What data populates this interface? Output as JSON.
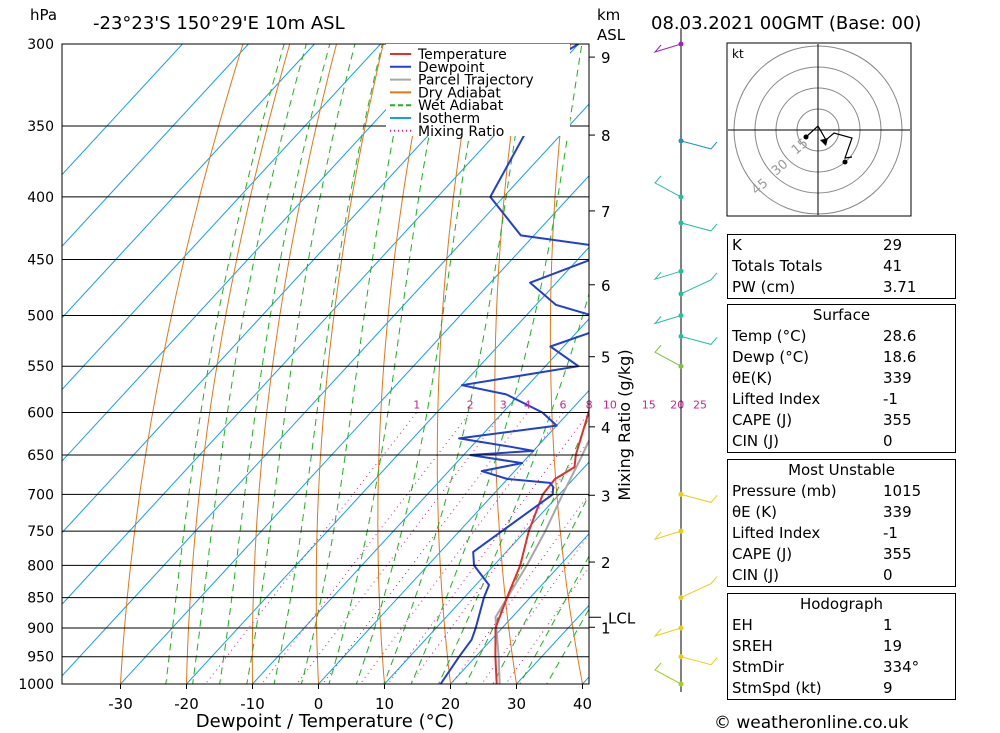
{
  "header": {
    "hpa_label": "hPa",
    "location": "-23°23'S 150°29'E 10m ASL",
    "km_label": "km",
    "asl_label": "ASL",
    "datetime": "08.03.2021 00GMT (Base: 00)"
  },
  "footer": {
    "credit": "© weatheronline.co.uk"
  },
  "chart_data": {
    "type": "line",
    "subtype": "skew-T log-p",
    "xlabel": "Dewpoint / Temperature (°C)",
    "ylabel_left": "hPa",
    "ylabel_right": "Mixing Ratio (g/kg)",
    "pressure_ticks": [
      300,
      350,
      400,
      450,
      500,
      550,
      600,
      650,
      700,
      750,
      800,
      850,
      900,
      950,
      1000
    ],
    "temperature_ticks": [
      -30,
      -20,
      -10,
      0,
      10,
      20,
      30,
      40
    ],
    "km_ticks": [
      1,
      2,
      3,
      4,
      5,
      6,
      7,
      8,
      9
    ],
    "lcl_label": "LCL",
    "lcl_pressure": 882,
    "mixing_ratio_labels": [
      "1",
      "2",
      "3",
      "4",
      "6",
      "8",
      "10",
      "15",
      "20",
      "25"
    ],
    "mixing_ratio_values": [
      1,
      2,
      3,
      4,
      6,
      8,
      10,
      15,
      20,
      25
    ],
    "legend": [
      {
        "name": "Temperature",
        "color": "#e03030",
        "style": "solid"
      },
      {
        "name": "Dewpoint",
        "color": "#2040d0",
        "style": "solid"
      },
      {
        "name": "Parcel Trajectory",
        "color": "#a8a8a8",
        "style": "solid"
      },
      {
        "name": "Dry Adiabat",
        "color": "#e07818",
        "style": "solid"
      },
      {
        "name": "Wet Adiabat",
        "color": "#20b020",
        "style": "dashed"
      },
      {
        "name": "Isotherm",
        "color": "#18a0e0",
        "style": "solid"
      },
      {
        "name": "Mixing Ratio",
        "color": "#d02090",
        "style": "dotted"
      }
    ],
    "temperature": [
      {
        "p": 1015,
        "t": 28.6
      },
      {
        "p": 1000,
        "t": 27.0
      },
      {
        "p": 950,
        "t": 23.0
      },
      {
        "p": 900,
        "t": 19.0
      },
      {
        "p": 850,
        "t": 16.5
      },
      {
        "p": 800,
        "t": 14.0
      },
      {
        "p": 750,
        "t": 10.5
      },
      {
        "p": 700,
        "t": 7.5
      },
      {
        "p": 680,
        "t": 7.2
      },
      {
        "p": 665,
        "t": 8.5
      },
      {
        "p": 650,
        "t": 7.0
      },
      {
        "p": 600,
        "t": 3.0
      },
      {
        "p": 550,
        "t": -1.5
      },
      {
        "p": 530,
        "t": -3.0
      },
      {
        "p": 520,
        "t": -2.5
      },
      {
        "p": 500,
        "t": -5.5
      },
      {
        "p": 450,
        "t": -12.0
      },
      {
        "p": 400,
        "t": -19.5
      },
      {
        "p": 350,
        "t": -28.0
      },
      {
        "p": 300,
        "t": -38.5
      }
    ],
    "dewpoint": [
      {
        "p": 1015,
        "t": 18.6
      },
      {
        "p": 1000,
        "t": 18.5
      },
      {
        "p": 950,
        "t": 17.5
      },
      {
        "p": 920,
        "t": 17.0
      },
      {
        "p": 900,
        "t": 16.0
      },
      {
        "p": 850,
        "t": 13.0
      },
      {
        "p": 830,
        "t": 12.0
      },
      {
        "p": 800,
        "t": 7.0
      },
      {
        "p": 780,
        "t": 5.0
      },
      {
        "p": 700,
        "t": 9.0
      },
      {
        "p": 690,
        "t": 8.0
      },
      {
        "p": 685,
        "t": 7.0
      },
      {
        "p": 680,
        "t": 0.0
      },
      {
        "p": 670,
        "t": -5.0
      },
      {
        "p": 660,
        "t": 0.0
      },
      {
        "p": 650,
        "t": -9.0
      },
      {
        "p": 645,
        "t": 0.0
      },
      {
        "p": 640,
        "t": -4.0
      },
      {
        "p": 630,
        "t": -13.0
      },
      {
        "p": 615,
        "t": 0.0
      },
      {
        "p": 600,
        "t": -4.0
      },
      {
        "p": 580,
        "t": -12.0
      },
      {
        "p": 570,
        "t": -20.0
      },
      {
        "p": 550,
        "t": -5.0
      },
      {
        "p": 530,
        "t": -12.0
      },
      {
        "p": 510,
        "t": -6.0
      },
      {
        "p": 500,
        "t": -10.0
      },
      {
        "p": 490,
        "t": -17.0
      },
      {
        "p": 470,
        "t": -24.0
      },
      {
        "p": 450,
        "t": -18.0
      },
      {
        "p": 440,
        "t": -17.0
      },
      {
        "p": 430,
        "t": -32.0
      },
      {
        "p": 400,
        "t": -42.0
      },
      {
        "p": 350,
        "t": -46.0
      },
      {
        "p": 310,
        "t": -52.0
      },
      {
        "p": 300,
        "t": -50.0
      }
    ],
    "parcel": [
      {
        "p": 1015,
        "t": 28.6
      },
      {
        "p": 950,
        "t": 23.5
      },
      {
        "p": 882,
        "t": 17.5
      },
      {
        "p": 800,
        "t": 15.0
      },
      {
        "p": 750,
        "t": 13.0
      },
      {
        "p": 700,
        "t": 10.5
      },
      {
        "p": 650,
        "t": 8.0
      },
      {
        "p": 600,
        "t": 5.0
      },
      {
        "p": 550,
        "t": 1.5
      },
      {
        "p": 500,
        "t": -3.0
      },
      {
        "p": 450,
        "t": -9.0
      },
      {
        "p": 400,
        "t": -16.0
      },
      {
        "p": 350,
        "t": -25.0
      },
      {
        "p": 300,
        "t": -36.0
      }
    ],
    "wind_profile": [
      {
        "p": 1000,
        "color": "#a0d020"
      },
      {
        "p": 950,
        "color": "#e8d010"
      },
      {
        "p": 900,
        "color": "#e8d010"
      },
      {
        "p": 850,
        "color": "#e8d010"
      },
      {
        "p": 750,
        "color": "#e8d010"
      },
      {
        "p": 700,
        "color": "#e8d010"
      },
      {
        "p": 550,
        "color": "#80c040"
      },
      {
        "p": 520,
        "color": "#20c0a0"
      },
      {
        "p": 500,
        "color": "#20c0a0"
      },
      {
        "p": 480,
        "color": "#20c0a0"
      },
      {
        "p": 460,
        "color": "#20c0a0"
      },
      {
        "p": 420,
        "color": "#20c0a0"
      },
      {
        "p": 400,
        "color": "#20c0a0"
      },
      {
        "p": 360,
        "color": "#2090c0"
      },
      {
        "p": 300,
        "color": "#a020c0"
      }
    ],
    "hodograph": {
      "unit_label": "kt",
      "ring_labels": [
        "15",
        "30",
        "45"
      ]
    }
  },
  "indices": {
    "rows": [
      {
        "label": "K",
        "value": "29"
      },
      {
        "label": "Totals Totals",
        "value": "41"
      },
      {
        "label": "PW (cm)",
        "value": "3.71"
      }
    ],
    "surface": {
      "title": "Surface",
      "rows": [
        {
          "label": "Temp (°C)",
          "value": "28.6"
        },
        {
          "label": "Dewp (°C)",
          "value": "18.6"
        },
        {
          "label": "θE(K)",
          "value": "339"
        },
        {
          "label": "Lifted Index",
          "value": "-1"
        },
        {
          "label": "CAPE (J)",
          "value": "355"
        },
        {
          "label": "CIN (J)",
          "value": "0"
        }
      ]
    },
    "most_unstable": {
      "title": "Most Unstable",
      "rows": [
        {
          "label": "Pressure (mb)",
          "value": "1015"
        },
        {
          "label": "θE (K)",
          "value": "339"
        },
        {
          "label": "Lifted Index",
          "value": "-1"
        },
        {
          "label": "CAPE (J)",
          "value": "355"
        },
        {
          "label": "CIN (J)",
          "value": "0"
        }
      ]
    },
    "hodograph": {
      "title": "Hodograph",
      "rows": [
        {
          "label": "EH",
          "value": "1"
        },
        {
          "label": "SREH",
          "value": "19"
        },
        {
          "label": "StmDir",
          "value": "334°"
        },
        {
          "label": "StmSpd (kt)",
          "value": "9"
        }
      ]
    }
  }
}
